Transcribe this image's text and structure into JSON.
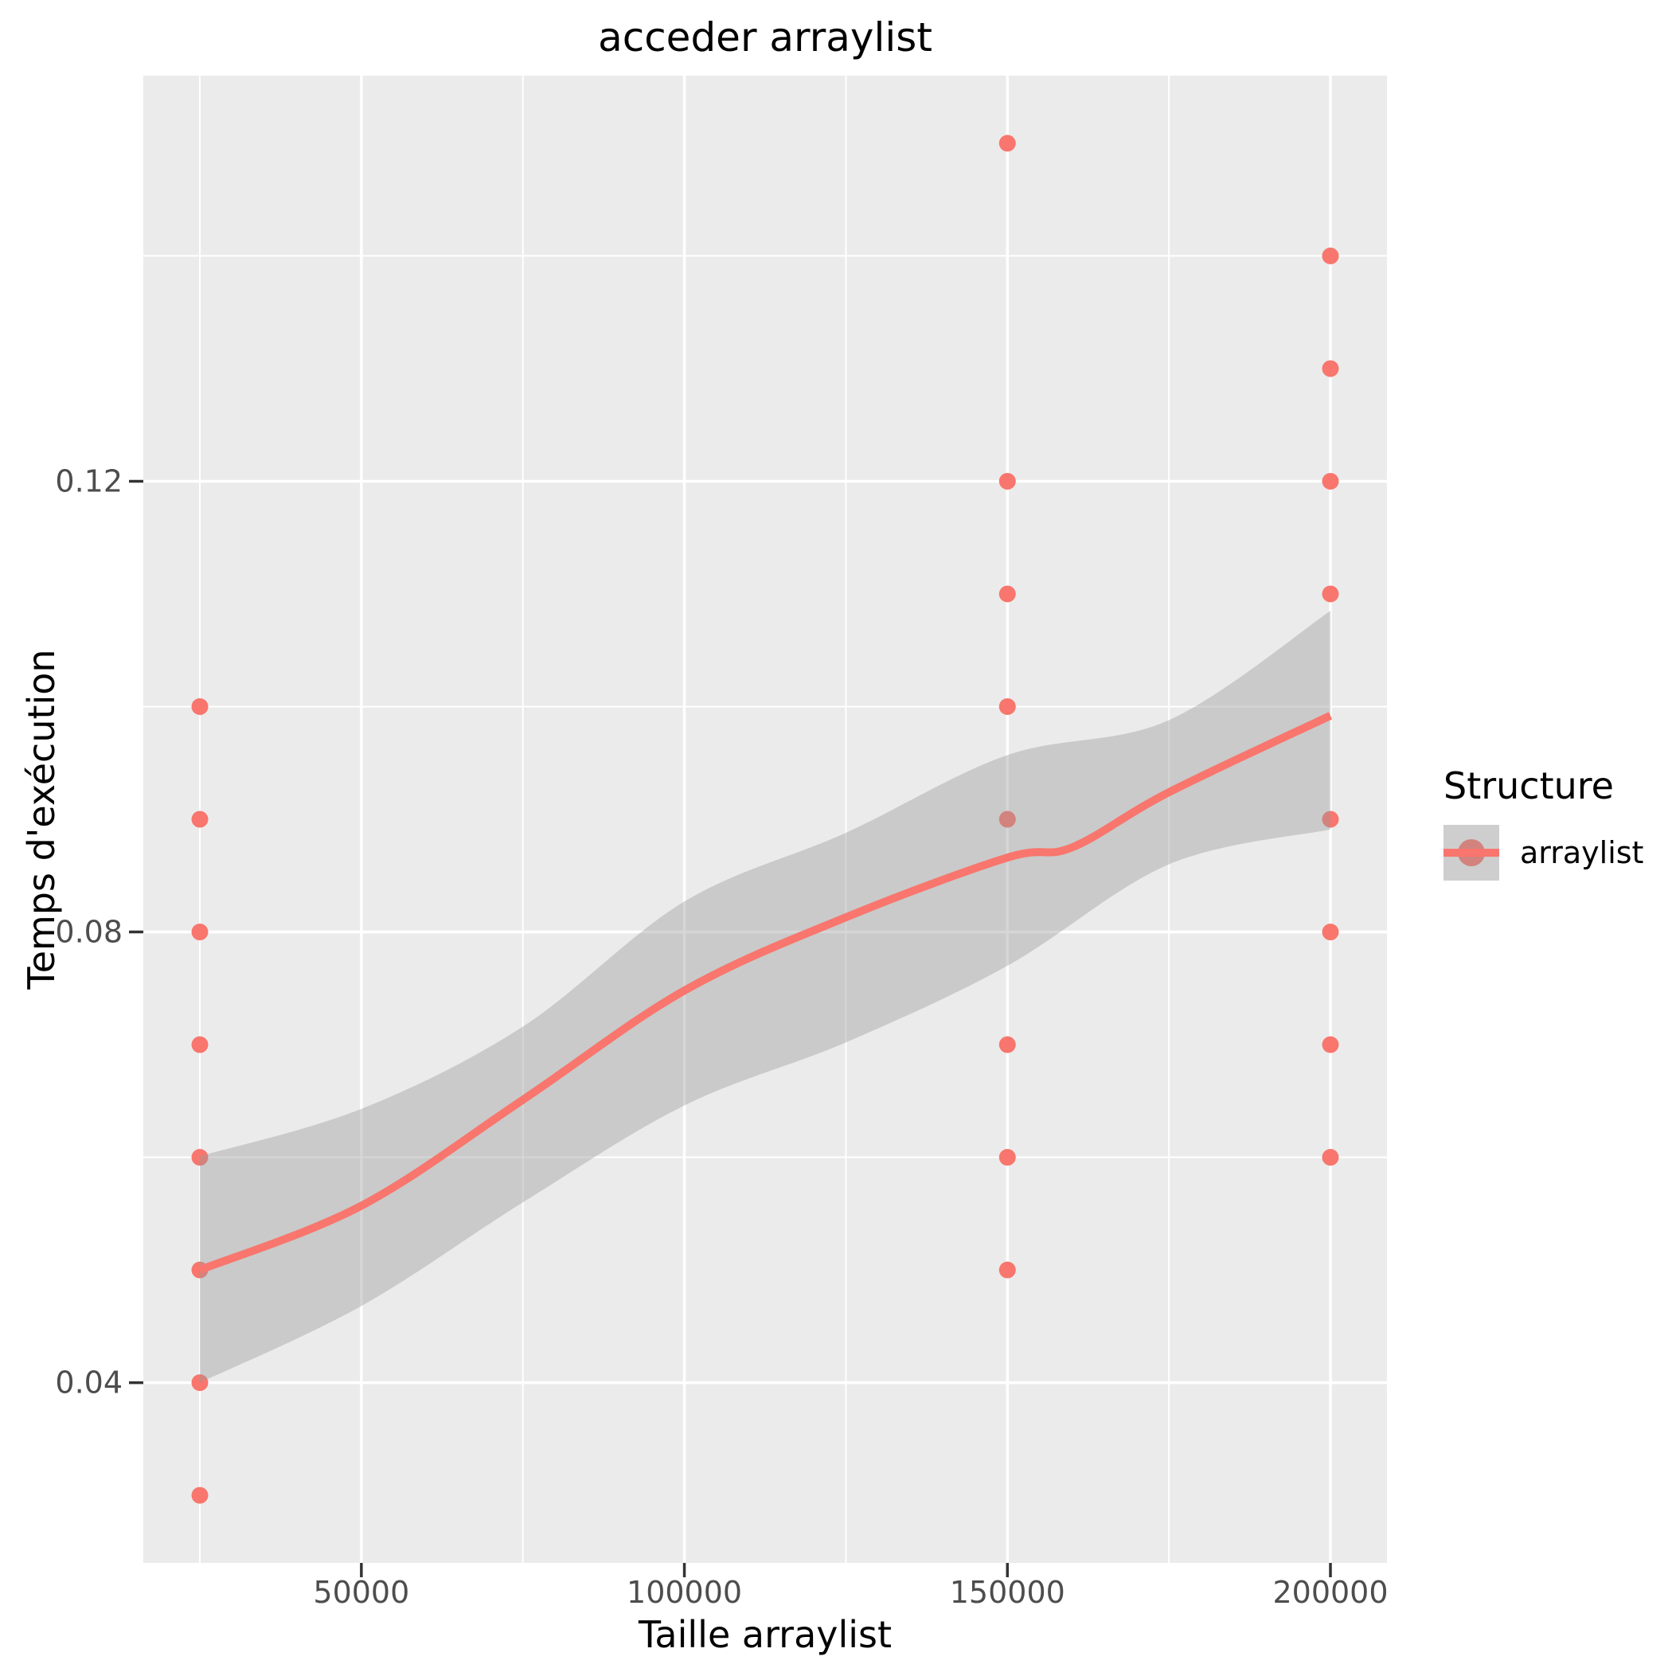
{
  "chart_data": {
    "type": "scatter",
    "title": "acceder arraylist",
    "xlabel": "Taille arraylist",
    "ylabel": "Temps d'exécution",
    "x_domain": [
      16250,
      208750
    ],
    "y_domain": [
      0.024,
      0.156
    ],
    "x_major_ticks": [
      50000,
      100000,
      150000,
      200000
    ],
    "x_minor_ticks": [
      25000,
      75000,
      125000,
      175000
    ],
    "y_major_ticks": [
      0.04,
      0.08,
      0.12
    ],
    "y_minor_ticks": [
      0.06,
      0.1,
      0.14
    ],
    "x_tick_labels": [
      "50000",
      "100000",
      "150000",
      "200000"
    ],
    "y_tick_labels": [
      "0.04",
      "0.08",
      "0.12"
    ],
    "series": [
      {
        "name": "arraylist",
        "color": "#F8766D",
        "points": [
          [
            25000,
            0.1
          ],
          [
            25000,
            0.09
          ],
          [
            25000,
            0.08
          ],
          [
            25000,
            0.07
          ],
          [
            25000,
            0.06
          ],
          [
            25000,
            0.05
          ],
          [
            25000,
            0.04
          ],
          [
            25000,
            0.03
          ],
          [
            150000,
            0.15
          ],
          [
            150000,
            0.12
          ],
          [
            150000,
            0.11
          ],
          [
            150000,
            0.1
          ],
          [
            150000,
            0.09
          ],
          [
            150000,
            0.07
          ],
          [
            150000,
            0.06
          ],
          [
            150000,
            0.05
          ],
          [
            200000,
            0.14
          ],
          [
            200000,
            0.13
          ],
          [
            200000,
            0.12
          ],
          [
            200000,
            0.11
          ],
          [
            200000,
            0.09
          ],
          [
            200000,
            0.08
          ],
          [
            200000,
            0.07
          ],
          [
            200000,
            0.06
          ]
        ],
        "smooth_line": [
          [
            25000,
            0.05
          ],
          [
            50000,
            0.0557
          ],
          [
            75000,
            0.0651
          ],
          [
            100000,
            0.0748
          ],
          [
            125000,
            0.0813
          ],
          [
            150000,
            0.0866
          ],
          [
            160000,
            0.0875
          ],
          [
            175000,
            0.0924
          ],
          [
            200000,
            0.0992
          ]
        ],
        "ribbon_upper": [
          [
            25000,
            0.0601
          ],
          [
            50000,
            0.0643
          ],
          [
            75000,
            0.0716
          ],
          [
            100000,
            0.0827
          ],
          [
            125000,
            0.0888
          ],
          [
            150000,
            0.0957
          ],
          [
            175000,
            0.0988
          ],
          [
            200000,
            0.1085
          ]
        ],
        "ribbon_lower": [
          [
            25000,
            0.04
          ],
          [
            50000,
            0.0468
          ],
          [
            75000,
            0.056
          ],
          [
            100000,
            0.0646
          ],
          [
            125000,
            0.0702
          ],
          [
            150000,
            0.077
          ],
          [
            175000,
            0.086
          ],
          [
            200000,
            0.0891
          ]
        ]
      }
    ],
    "legend": {
      "title": "Structure",
      "position": "right",
      "entries": [
        {
          "label": "arraylist",
          "color": "#F8766D"
        }
      ]
    },
    "colors": {
      "panel_background": "#EBEBEB",
      "grid_line": "#FFFFFF",
      "ribbon_fill": "rgba(153,153,153,0.4)",
      "tick_label": "#4D4D4D",
      "tick_mark": "#333333",
      "series": "#F8766D",
      "legend_key_background": "#F2F2F2"
    }
  }
}
